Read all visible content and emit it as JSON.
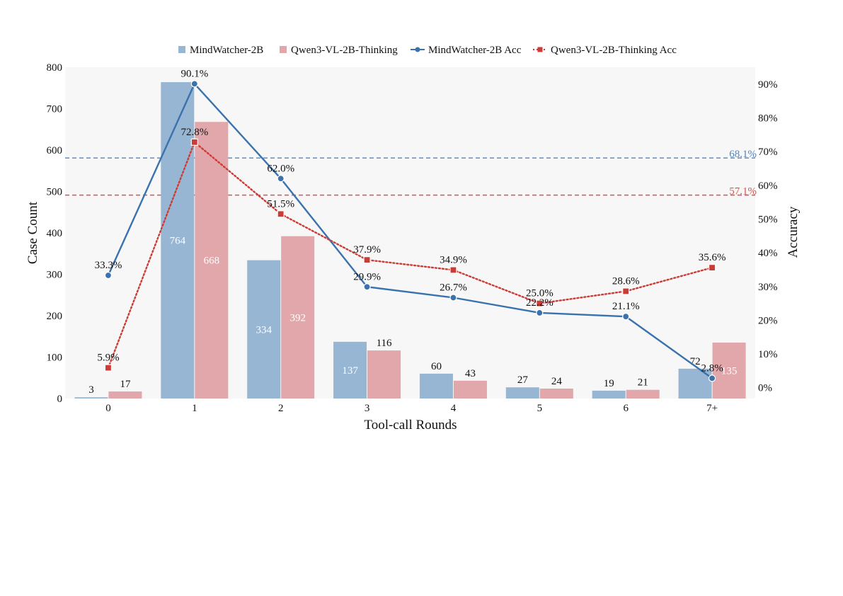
{
  "chart_data": {
    "type": "bar+line",
    "xlabel": "Tool-call Rounds",
    "ylabel_left": "Case Count",
    "ylabel_right": "Accuracy",
    "categories": [
      "0",
      "1",
      "2",
      "3",
      "4",
      "5",
      "6",
      "7+"
    ],
    "ylim_left": [
      0,
      800
    ],
    "yticks_left": [
      "0",
      "100",
      "200",
      "300",
      "400",
      "500",
      "600",
      "700",
      "800"
    ],
    "ylim_right_percent": [
      -3.2,
      95
    ],
    "yticks_right": [
      "0%",
      "10%",
      "20%",
      "30%",
      "40%",
      "50%",
      "60%",
      "70%",
      "80%",
      "90%"
    ],
    "bar_series": [
      {
        "name": "MindWatcher-2B",
        "color": "#97b6d4",
        "values": [
          3,
          764,
          334,
          137,
          60,
          27,
          19,
          72
        ]
      },
      {
        "name": "Qwen3-VL-2B-Thinking",
        "color": "#e1a7aa",
        "values": [
          17,
          668,
          392,
          116,
          43,
          24,
          21,
          135
        ]
      }
    ],
    "bar_labels": [
      [
        "3",
        "764",
        "334",
        "137",
        "60",
        "27",
        "19",
        "72"
      ],
      [
        "17",
        "668",
        "392",
        "116",
        "43",
        "24",
        "21",
        "135"
      ]
    ],
    "line_series": [
      {
        "name": "MindWatcher-2B Acc",
        "color": "#3a72ad",
        "style": "solid",
        "marker": "circle",
        "values": [
          33.3,
          90.1,
          62.0,
          29.9,
          26.7,
          22.2,
          21.1,
          2.8
        ],
        "labels": [
          "33.3%",
          "90.1%",
          "62.0%",
          "29.9%",
          "26.7%",
          "22.2%",
          "21.1%",
          "2.8%"
        ]
      },
      {
        "name": "Qwen3-VL-2B-Thinking Acc",
        "color": "#cc3b35",
        "style": "dotted",
        "marker": "square",
        "values": [
          5.9,
          72.8,
          51.5,
          37.9,
          34.9,
          25.0,
          28.6,
          35.6
        ],
        "labels": [
          "5.9%",
          "72.8%",
          "51.5%",
          "37.9%",
          "34.9%",
          "25.0%",
          "28.6%",
          "35.6%"
        ]
      }
    ],
    "reference_lines": [
      {
        "value": 68.1,
        "label": "68.1%",
        "color": "#4f86c0"
      },
      {
        "value": 57.1,
        "label": "57.1%",
        "color": "#d9534f"
      }
    ],
    "legend": {
      "placement": "top-center",
      "entries": [
        "MindWatcher-2B",
        "Qwen3-VL-2B-Thinking",
        "MindWatcher-2B Acc",
        "Qwen3-VL-2B-Thinking Acc"
      ]
    },
    "plot_background": "#f7f7f7"
  }
}
